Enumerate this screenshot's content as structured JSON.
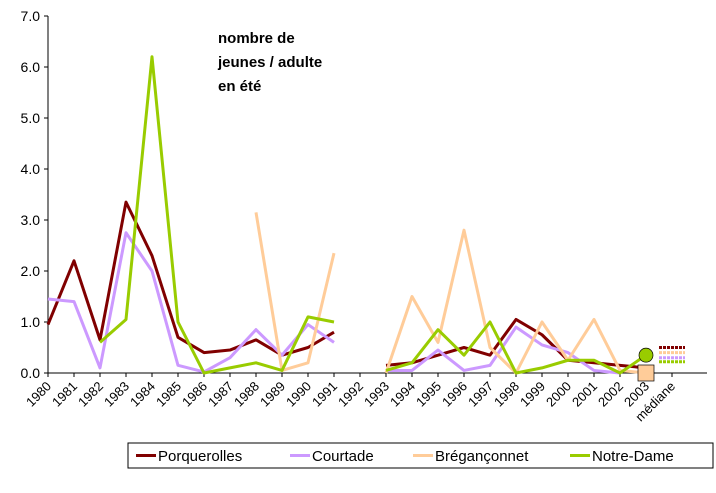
{
  "chart_data": {
    "type": "line",
    "annotation": [
      "nombre de",
      "jeunes / adulte",
      "en été"
    ],
    "categories": [
      "1980",
      "1981",
      "1982",
      "1983",
      "1984",
      "1985",
      "1986",
      "1987",
      "1988",
      "1989",
      "1990",
      "1991",
      "1992",
      "1993",
      "1994",
      "1995",
      "1996",
      "1997",
      "1998",
      "1999",
      "2000",
      "2001",
      "2002",
      "2003",
      "médiane"
    ],
    "series": [
      {
        "name": "Porquerolles",
        "color": "#800000",
        "values": [
          0.95,
          2.2,
          0.65,
          3.35,
          2.3,
          0.7,
          0.4,
          0.45,
          0.65,
          0.35,
          0.5,
          0.8,
          null,
          0.15,
          0.2,
          0.35,
          0.5,
          0.35,
          1.05,
          0.75,
          0.25,
          0.2,
          0.15,
          0.1,
          0.5
        ]
      },
      {
        "name": "Courtade",
        "color": "#cc99ff",
        "values": [
          1.45,
          1.4,
          0.1,
          2.75,
          2.0,
          0.15,
          0.02,
          0.3,
          0.85,
          0.35,
          0.95,
          0.6,
          null,
          0.05,
          0.05,
          0.45,
          0.05,
          0.15,
          0.9,
          0.55,
          0.4,
          0.05,
          0.0,
          null,
          0.3
        ]
      },
      {
        "name": "Brégançonnet",
        "color": "#ffcc99",
        "end_marker": "square",
        "values": [
          null,
          null,
          null,
          null,
          null,
          null,
          null,
          null,
          3.15,
          0.05,
          0.2,
          2.35,
          null,
          0.0,
          1.5,
          0.6,
          2.8,
          0.5,
          0.0,
          1.0,
          0.25,
          1.05,
          0.05,
          0.0,
          0.4
        ]
      },
      {
        "name": "Notre-Dame",
        "color": "#99cc00",
        "end_marker": "circle",
        "values": [
          null,
          null,
          0.6,
          1.05,
          6.2,
          1.0,
          0.0,
          0.1,
          0.2,
          0.05,
          1.1,
          1.0,
          null,
          0.05,
          0.2,
          0.85,
          0.35,
          1.0,
          0.0,
          0.1,
          0.25,
          0.25,
          0.0,
          0.35,
          0.22
        ]
      }
    ],
    "ylim": [
      0,
      7
    ],
    "yticks": [
      {
        "value": 0,
        "label": "0.0"
      },
      {
        "value": 1,
        "label": "1.0"
      },
      {
        "value": 2,
        "label": "2.0"
      },
      {
        "value": 3,
        "label": "3.0"
      },
      {
        "value": 4,
        "label": "4.0"
      },
      {
        "value": 5,
        "label": "5.0"
      },
      {
        "value": 6,
        "label": "6.0"
      },
      {
        "value": 7,
        "label": "7.0"
      }
    ],
    "legend": "bottom"
  }
}
